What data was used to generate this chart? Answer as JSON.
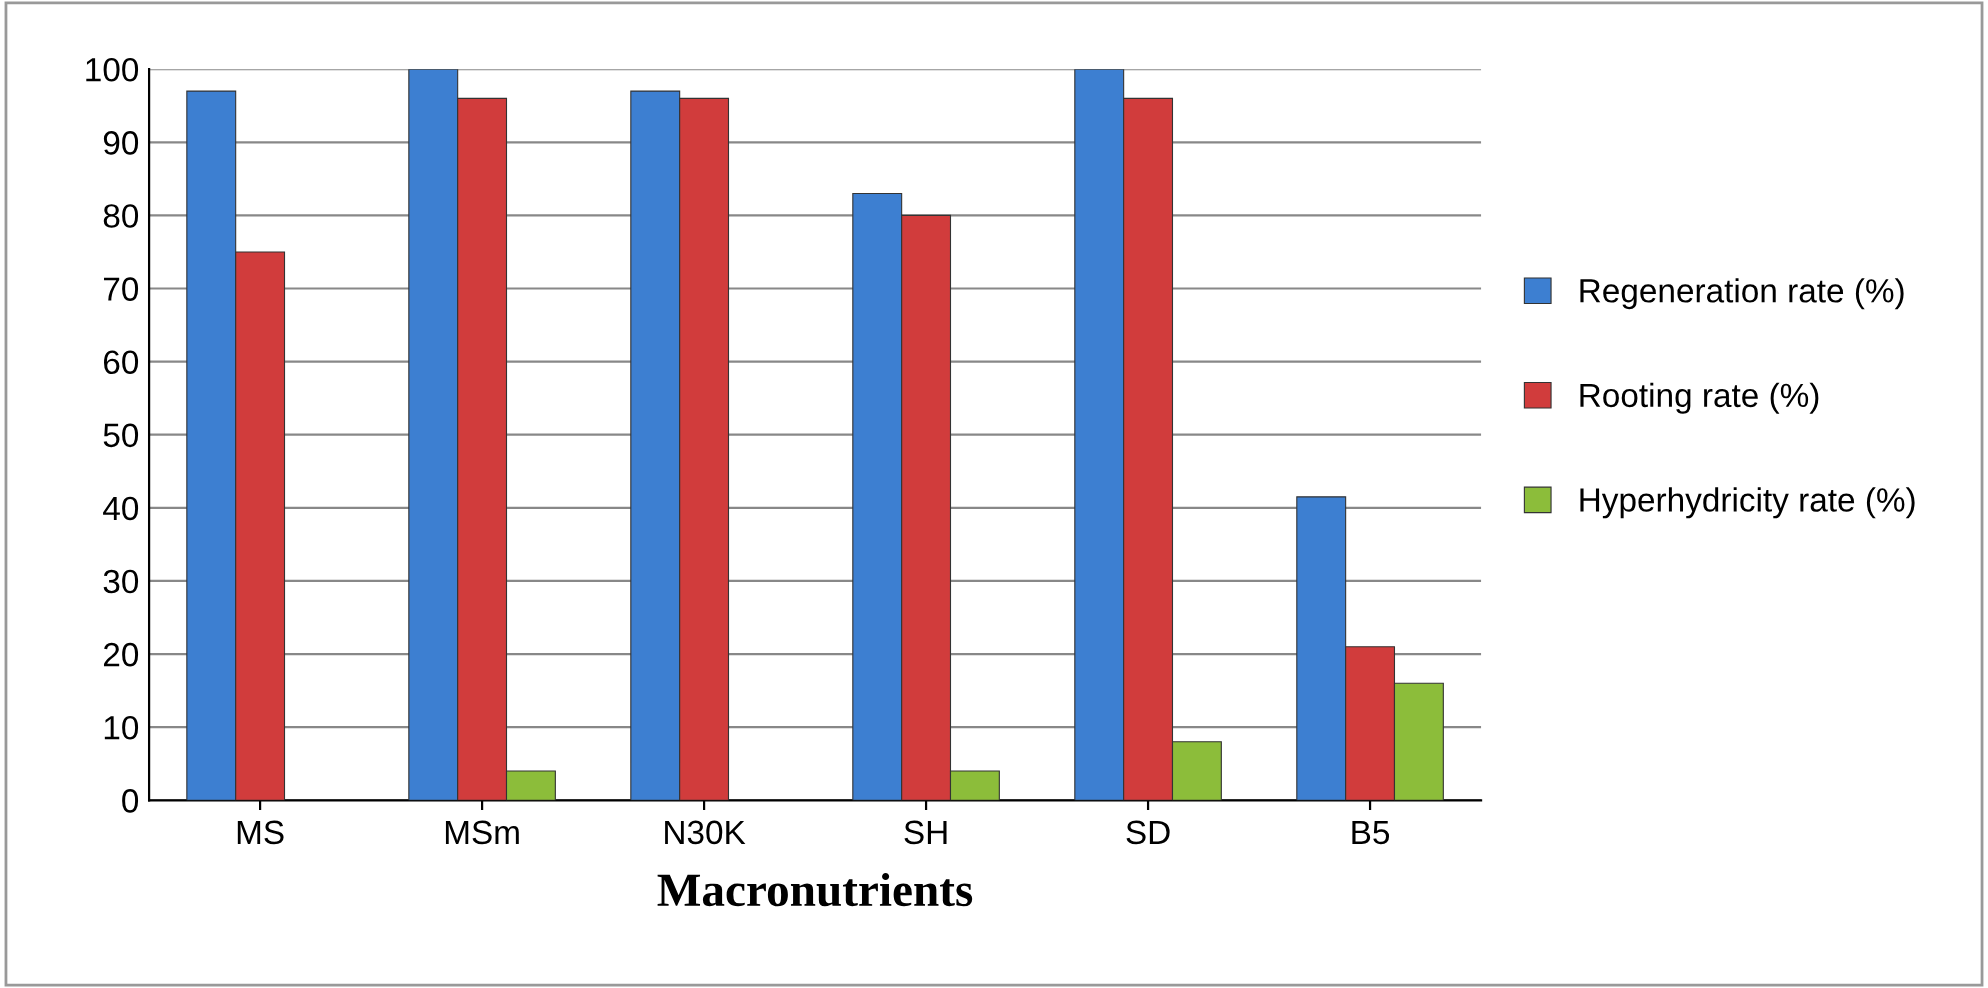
{
  "chart_data": {
    "type": "bar",
    "xlabel": "Macronutrients",
    "categories": [
      "MS",
      "MSm",
      "N30K",
      "SH",
      "SD",
      "B5"
    ],
    "series": [
      {
        "name": "Regeneration rate (%)",
        "color": "#3d7fd1",
        "values": [
          97,
          100,
          97,
          83,
          100,
          41.5
        ]
      },
      {
        "name": "Rooting rate (%)",
        "color": "#d13c3c",
        "values": [
          75,
          96,
          96,
          80,
          96,
          21
        ]
      },
      {
        "name": "Hyperhydricity rate (%)",
        "color": "#8cbd3a",
        "values": [
          null,
          4,
          null,
          4,
          8,
          16
        ]
      }
    ],
    "ylim": [
      0,
      100
    ],
    "yticks": [
      0,
      10,
      20,
      30,
      40,
      50,
      60,
      70,
      80,
      90,
      100
    ],
    "grid": "y",
    "legend": "right"
  }
}
